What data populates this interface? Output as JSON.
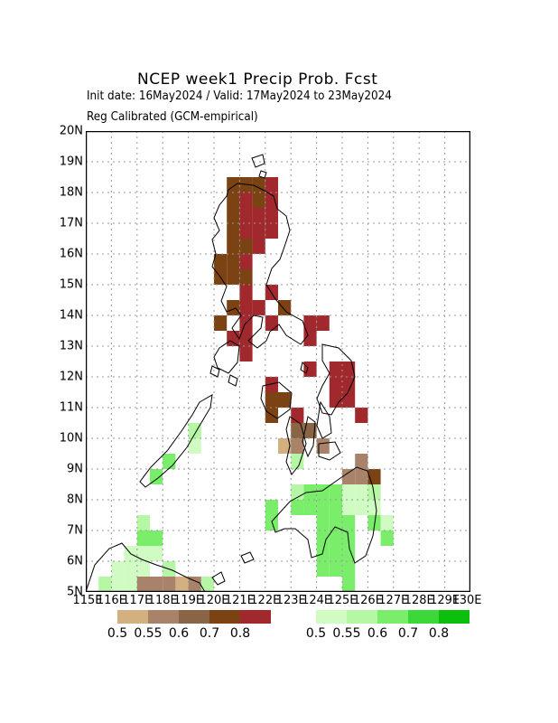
{
  "header": {
    "title": "NCEP week1 Precip Prob. Fcst",
    "subtitle": "Init date: 16May2024 / Valid: 17May2024 to 23May2024",
    "method": "Reg Calibrated (GCM-empirical)"
  },
  "map": {
    "lat_labels": [
      "5N",
      "6N",
      "7N",
      "8N",
      "9N",
      "10N",
      "11N",
      "12N",
      "13N",
      "14N",
      "15N",
      "16N",
      "17N",
      "18N",
      "19N",
      "20N"
    ],
    "lon_labels": [
      "115E",
      "116E",
      "117E",
      "118E",
      "119E",
      "120E",
      "121E",
      "122E",
      "123E",
      "124E",
      "125E",
      "126E",
      "127E",
      "128E",
      "129E",
      "130E"
    ],
    "grid": "dotted",
    "lat_range": [
      5,
      20
    ],
    "lon_range": [
      115,
      130
    ]
  },
  "legend": {
    "below": {
      "colors": [
        "#d3b07f",
        "#a9826a",
        "#896445",
        "#7b4213",
        "#a1282d"
      ],
      "labels": [
        "0.5",
        "0.55",
        "0.6",
        "0.7",
        "0.8"
      ]
    },
    "above": {
      "colors": [
        "#d0fbc3",
        "#b5f7a4",
        "#7aee6b",
        "#3cd83a",
        "#0dbf0d"
      ],
      "labels": [
        "0.5",
        "0.55",
        "0.6",
        "0.7",
        "0.8"
      ]
    }
  },
  "cells": {
    "below": [
      [
        120.5,
        18,
        4
      ],
      [
        121,
        18,
        4
      ],
      [
        121.5,
        18,
        4
      ],
      [
        122,
        18,
        5
      ],
      [
        120.5,
        17.5,
        4
      ],
      [
        121,
        17.5,
        5
      ],
      [
        121.5,
        17.5,
        4
      ],
      [
        122,
        17.5,
        5
      ],
      [
        120.5,
        17,
        4
      ],
      [
        121,
        17,
        5
      ],
      [
        121.5,
        17,
        5
      ],
      [
        122,
        17,
        5
      ],
      [
        120.5,
        16.5,
        4
      ],
      [
        121,
        16.5,
        5
      ],
      [
        121.5,
        16.5,
        5
      ],
      [
        122,
        16.5,
        5
      ],
      [
        120.5,
        16,
        4
      ],
      [
        121,
        16,
        4
      ],
      [
        121.5,
        16,
        5
      ],
      [
        120,
        15.5,
        4
      ],
      [
        120.5,
        15.5,
        4
      ],
      [
        121,
        15.5,
        5
      ],
      [
        120,
        15,
        4
      ],
      [
        120.5,
        15,
        4
      ],
      [
        121,
        15,
        4
      ],
      [
        121,
        14.5,
        5
      ],
      [
        122,
        14.5,
        5
      ],
      [
        120.5,
        14,
        4
      ],
      [
        121,
        14,
        5
      ],
      [
        121.5,
        14,
        5
      ],
      [
        122.5,
        14,
        4
      ],
      [
        120,
        13.5,
        4
      ],
      [
        121,
        13.5,
        5
      ],
      [
        122,
        13.5,
        5
      ],
      [
        123.5,
        13.5,
        5
      ],
      [
        124,
        13.5,
        5
      ],
      [
        120.5,
        13,
        5
      ],
      [
        121,
        13,
        5
      ],
      [
        123.5,
        13,
        5
      ],
      [
        121,
        12.5,
        5
      ],
      [
        124.5,
        12,
        5
      ],
      [
        125,
        12,
        5
      ],
      [
        123.5,
        12,
        5
      ],
      [
        125,
        11.5,
        5
      ],
      [
        124.5,
        11.5,
        5
      ],
      [
        122,
        11.5,
        5
      ],
      [
        122,
        11,
        4
      ],
      [
        122.5,
        11,
        4
      ],
      [
        124.5,
        11,
        5
      ],
      [
        125,
        11,
        5
      ],
      [
        122,
        10.5,
        4
      ],
      [
        125.5,
        10.5,
        5
      ],
      [
        123,
        10.5,
        5
      ],
      [
        123,
        10,
        3
      ],
      [
        123.5,
        10,
        3
      ],
      [
        122.5,
        9.5,
        1
      ],
      [
        123,
        9.5,
        2
      ],
      [
        124,
        9.5,
        2
      ],
      [
        125.5,
        9,
        2
      ],
      [
        125,
        8.5,
        2
      ],
      [
        125.5,
        8.5,
        2
      ],
      [
        126,
        8.5,
        4
      ]
    ],
    "above": [
      [
        118,
        9,
        3
      ],
      [
        117.5,
        8.5,
        3
      ],
      [
        119,
        10,
        2
      ],
      [
        119,
        9.5,
        1
      ],
      [
        123,
        9,
        2
      ],
      [
        123,
        8,
        2
      ],
      [
        123.5,
        8,
        3
      ],
      [
        124,
        8,
        3
      ],
      [
        124.5,
        8,
        3
      ],
      [
        125,
        8,
        1
      ],
      [
        125.5,
        8,
        1
      ],
      [
        126,
        8,
        2
      ],
      [
        122,
        7.5,
        3
      ],
      [
        123,
        7.5,
        3
      ],
      [
        123.5,
        7.5,
        3
      ],
      [
        124,
        7.5,
        3
      ],
      [
        124.5,
        7.5,
        3
      ],
      [
        125,
        7.5,
        1
      ],
      [
        125.5,
        7.5,
        1
      ],
      [
        126,
        7.5,
        1
      ],
      [
        122,
        7,
        3
      ],
      [
        124,
        7,
        3
      ],
      [
        124.5,
        7,
        3
      ],
      [
        125,
        7,
        3
      ],
      [
        126,
        7,
        3
      ],
      [
        126.5,
        7,
        1
      ],
      [
        117,
        7,
        2
      ],
      [
        117,
        6.5,
        3
      ],
      [
        117.5,
        6.5,
        3
      ],
      [
        124,
        6.5,
        3
      ],
      [
        124.5,
        6.5,
        3
      ],
      [
        125,
        6.5,
        3
      ],
      [
        126.5,
        6.5,
        3
      ],
      [
        116.5,
        6,
        1
      ],
      [
        117,
        6,
        1
      ],
      [
        117.5,
        6,
        1
      ],
      [
        124,
        6,
        3
      ],
      [
        124.5,
        6,
        3
      ],
      [
        125,
        6,
        3
      ],
      [
        116,
        5.5,
        1
      ],
      [
        116.5,
        5.5,
        1
      ],
      [
        117,
        5.5,
        1
      ],
      [
        118,
        5.5,
        2
      ],
      [
        124,
        5.5,
        3
      ],
      [
        124.5,
        5.5,
        3
      ],
      [
        125,
        5.5,
        3
      ],
      [
        115.5,
        5,
        2
      ],
      [
        116,
        5,
        1
      ],
      [
        116.5,
        5,
        1
      ],
      [
        117,
        5,
        1
      ],
      [
        119.5,
        5,
        2
      ],
      [
        125,
        5,
        3
      ]
    ],
    "below_bottom": [
      [
        117,
        5,
        2
      ],
      [
        117.5,
        5,
        2
      ],
      [
        118,
        5,
        2
      ],
      [
        118.5,
        5,
        1
      ],
      [
        119,
        5,
        2
      ]
    ]
  }
}
